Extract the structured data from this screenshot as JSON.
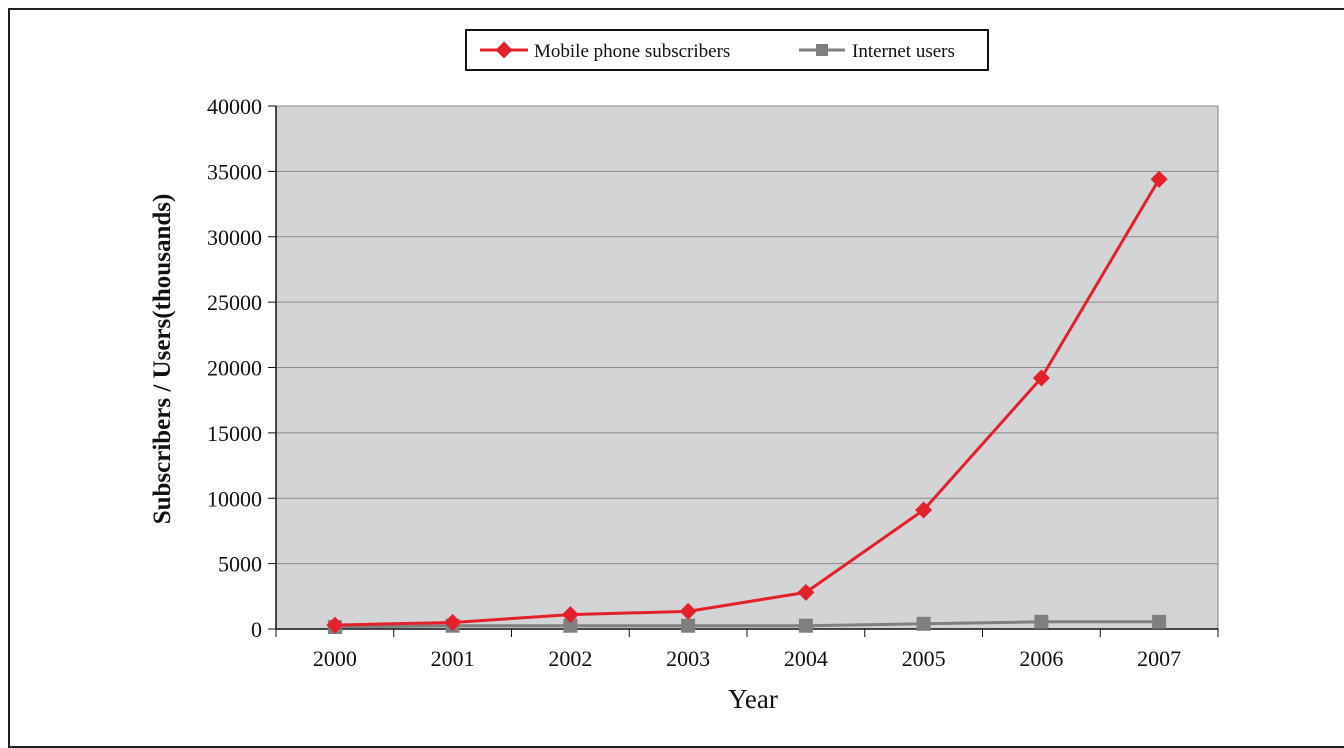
{
  "chart_data": {
    "type": "line",
    "title": "",
    "xlabel": "Year",
    "ylabel": "Subscribers / Users(thousands)",
    "categories": [
      "2000",
      "2001",
      "2002",
      "2003",
      "2004",
      "2005",
      "2006",
      "2007"
    ],
    "y_ticks": [
      "0",
      "5000",
      "10000",
      "15000",
      "20000",
      "25000",
      "30000",
      "35000",
      "40000"
    ],
    "ylim": [
      0,
      40000
    ],
    "grid": true,
    "legend_position": "top-center",
    "plot_background": "#d3d4d6",
    "series": [
      {
        "name": "Mobile phone subscribers",
        "color": "#e4202a",
        "marker": "diamond",
        "values": [
          300,
          500,
          1100,
          1350,
          2800,
          9100,
          19200,
          34400
        ]
      },
      {
        "name": "Internet users",
        "color": "#7f7f7f",
        "marker": "square",
        "values": [
          150,
          250,
          250,
          250,
          250,
          400,
          550,
          550
        ]
      }
    ]
  }
}
